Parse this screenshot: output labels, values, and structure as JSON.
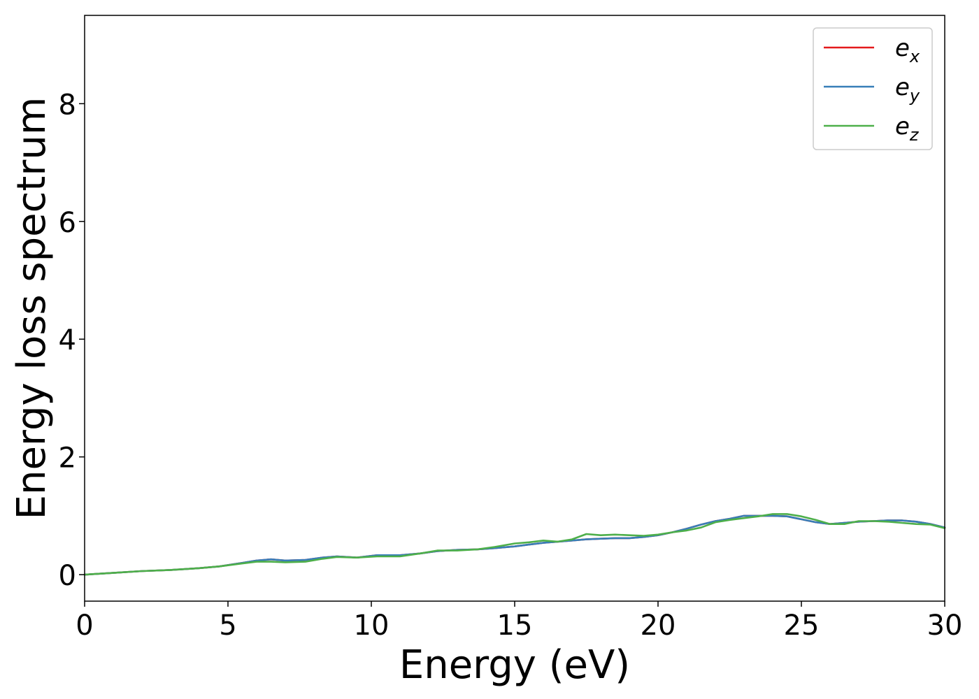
{
  "chart_data": {
    "type": "line",
    "title": "",
    "xlabel": "Energy (eV)",
    "ylabel": "Energy loss spectrum",
    "xlim": [
      0,
      30
    ],
    "ylim": [
      -0.45,
      9.5
    ],
    "xticks": [
      0,
      5,
      10,
      15,
      20,
      25,
      30
    ],
    "yticks": [
      0,
      2,
      4,
      6,
      8
    ],
    "xtick_labels": [
      "0",
      "5",
      "10",
      "15",
      "20",
      "25",
      "30"
    ],
    "ytick_labels": [
      "0",
      "2",
      "4",
      "6",
      "8"
    ],
    "grid": false,
    "legend_position": "top-right",
    "series": [
      {
        "name": "e_x",
        "label_base": "e",
        "label_sub": "x",
        "color": "#e41a1c",
        "x": [
          0,
          1,
          2,
          3,
          4,
          4.7,
          5.5,
          6,
          6.5,
          7,
          7.7,
          8.3,
          8.8,
          9.5,
          10.2,
          11,
          11.7,
          12.3,
          13,
          13.7,
          14.3,
          15,
          15.5,
          16,
          16.5,
          17,
          17.5,
          18,
          18.5,
          19,
          19.5,
          20,
          20.5,
          21,
          21.5,
          22,
          22.5,
          23,
          23.5,
          24,
          24.5,
          25,
          25.5,
          26,
          26.5,
          27,
          27.5,
          28,
          28.5,
          29,
          29.5,
          30
        ],
        "y": [
          0,
          0.03,
          0.06,
          0.08,
          0.11,
          0.14,
          0.2,
          0.24,
          0.26,
          0.24,
          0.25,
          0.29,
          0.31,
          0.29,
          0.33,
          0.33,
          0.36,
          0.4,
          0.42,
          0.43,
          0.45,
          0.48,
          0.51,
          0.54,
          0.56,
          0.58,
          0.6,
          0.61,
          0.62,
          0.62,
          0.64,
          0.67,
          0.72,
          0.78,
          0.85,
          0.91,
          0.95,
          1.0,
          1.0,
          1.0,
          0.99,
          0.94,
          0.89,
          0.86,
          0.88,
          0.9,
          0.91,
          0.92,
          0.92,
          0.9,
          0.86,
          0.8
        ]
      },
      {
        "name": "e_y",
        "label_base": "e",
        "label_sub": "y",
        "color": "#377eb8",
        "x": [
          0,
          1,
          2,
          3,
          4,
          4.7,
          5.5,
          6,
          6.5,
          7,
          7.7,
          8.3,
          8.8,
          9.5,
          10.2,
          11,
          11.7,
          12.3,
          13,
          13.7,
          14.3,
          15,
          15.5,
          16,
          16.5,
          17,
          17.5,
          18,
          18.5,
          19,
          19.5,
          20,
          20.5,
          21,
          21.5,
          22,
          22.5,
          23,
          23.5,
          24,
          24.5,
          25,
          25.5,
          26,
          26.5,
          27,
          27.5,
          28,
          28.5,
          29,
          29.5,
          30
        ],
        "y": [
          0,
          0.03,
          0.06,
          0.08,
          0.11,
          0.14,
          0.2,
          0.24,
          0.26,
          0.24,
          0.25,
          0.29,
          0.31,
          0.29,
          0.33,
          0.33,
          0.36,
          0.4,
          0.42,
          0.43,
          0.45,
          0.48,
          0.51,
          0.54,
          0.56,
          0.58,
          0.6,
          0.61,
          0.62,
          0.62,
          0.64,
          0.67,
          0.72,
          0.78,
          0.85,
          0.91,
          0.95,
          1.0,
          1.0,
          1.0,
          0.99,
          0.94,
          0.89,
          0.86,
          0.88,
          0.9,
          0.91,
          0.92,
          0.92,
          0.9,
          0.86,
          0.8
        ]
      },
      {
        "name": "e_z",
        "label_base": "e",
        "label_sub": "z",
        "color": "#4daf4a",
        "x": [
          0,
          1,
          2,
          3,
          4,
          4.7,
          5.5,
          6,
          6.5,
          7,
          7.7,
          8.3,
          8.8,
          9.5,
          10.2,
          11,
          11.7,
          12.3,
          13,
          13.7,
          14.3,
          15,
          15.5,
          16,
          16.5,
          17,
          17.5,
          18,
          18.5,
          19,
          19.5,
          20,
          20.5,
          21,
          21.5,
          22,
          22.5,
          23,
          23.5,
          24,
          24.5,
          25,
          25.5,
          26,
          26.5,
          27,
          27.5,
          28,
          28.5,
          29,
          29.5,
          30
        ],
        "y": [
          0,
          0.03,
          0.06,
          0.08,
          0.11,
          0.14,
          0.19,
          0.22,
          0.22,
          0.21,
          0.22,
          0.27,
          0.3,
          0.29,
          0.31,
          0.31,
          0.36,
          0.41,
          0.41,
          0.43,
          0.47,
          0.53,
          0.55,
          0.58,
          0.56,
          0.6,
          0.69,
          0.67,
          0.68,
          0.67,
          0.66,
          0.68,
          0.72,
          0.75,
          0.8,
          0.89,
          0.93,
          0.96,
          0.99,
          1.03,
          1.03,
          0.99,
          0.93,
          0.86,
          0.86,
          0.91,
          0.91,
          0.9,
          0.88,
          0.86,
          0.85,
          0.79
        ]
      }
    ]
  }
}
